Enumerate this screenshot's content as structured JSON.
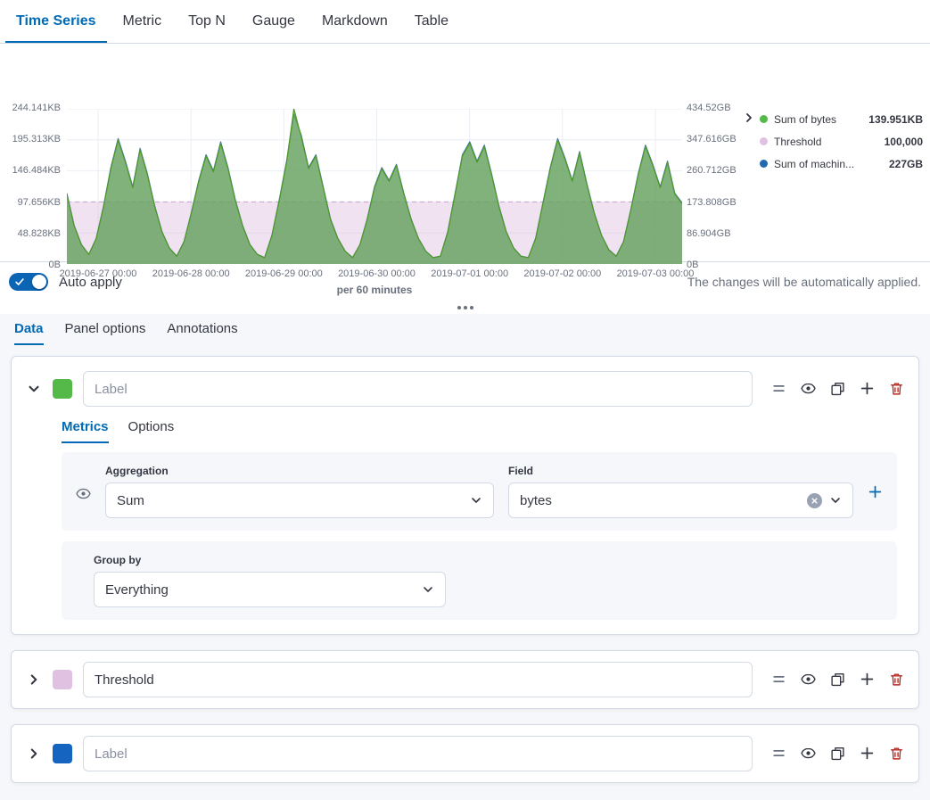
{
  "theme": {
    "primary": "#006BB4",
    "danger": "#BD271E"
  },
  "top_tabs": {
    "items": [
      {
        "label": "Time Series",
        "active": true
      },
      {
        "label": "Metric"
      },
      {
        "label": "Top N"
      },
      {
        "label": "Gauge"
      },
      {
        "label": "Markdown"
      },
      {
        "label": "Table"
      }
    ]
  },
  "chart": {
    "left_ticks": [
      "244.141KB",
      "195.313KB",
      "146.484KB",
      "97.656KB",
      "48.828KB",
      "0B"
    ],
    "right_ticks": [
      "434.52GB",
      "347.616GB",
      "260.712GB",
      "173.808GB",
      "86.904GB",
      "0B"
    ],
    "x_caption": "per 60 minutes",
    "legend": {
      "items": [
        {
          "label": "Sum of bytes",
          "value": "139.951KB",
          "color": "#54B948"
        },
        {
          "label": "Threshold",
          "value": "100,000",
          "color": "#E0C1E2"
        },
        {
          "label": "Sum of machin...",
          "value": "227GB",
          "color": "#2268AE"
        }
      ]
    }
  },
  "chart_data": {
    "type": "area",
    "x_tick_labels": [
      "2019-06-27 00:00",
      "2019-06-28 00:00",
      "2019-06-29 00:00",
      "2019-06-30 00:00",
      "2019-07-01 00:00",
      "2019-07-02 00:00",
      "2019-07-03 00:00"
    ],
    "x_unit": "per 60 minutes",
    "axes": {
      "left": {
        "unit": "KB",
        "max": 244.141,
        "ticks": [
          0,
          48.828,
          97.656,
          146.484,
          195.313,
          244.141
        ]
      },
      "right": {
        "unit": "GB",
        "max": 434.52,
        "ticks": [
          0,
          86.904,
          173.808,
          260.712,
          347.616,
          434.52
        ]
      }
    },
    "series": [
      {
        "name": "Sum of bytes",
        "axis": "left",
        "type": "area",
        "color": "#54B948",
        "fill": "rgba(110,174,58,0.6)",
        "stroke": "#4E9A27",
        "current": "139.951KB",
        "values": [
          110,
          60,
          30,
          15,
          40,
          90,
          150,
          195,
          160,
          120,
          180,
          140,
          90,
          50,
          25,
          12,
          35,
          80,
          130,
          170,
          145,
          190,
          150,
          100,
          60,
          30,
          15,
          10,
          45,
          100,
          160,
          244,
          200,
          150,
          170,
          120,
          70,
          40,
          20,
          10,
          30,
          70,
          120,
          150,
          130,
          155,
          110,
          70,
          40,
          20,
          10,
          12,
          50,
          110,
          170,
          190,
          160,
          185,
          140,
          90,
          50,
          25,
          12,
          10,
          40,
          95,
          150,
          195,
          165,
          130,
          175,
          125,
          80,
          45,
          22,
          12,
          35,
          85,
          140,
          185,
          155,
          120,
          160,
          110,
          95
        ]
      },
      {
        "name": "Threshold",
        "axis": "left",
        "type": "band",
        "color": "#E0C1E2",
        "band_fill": "rgba(219,182,221,0.4)",
        "line": "#C79ECB",
        "value": 97.656,
        "current": "100,000"
      },
      {
        "name": "Sum of machin...",
        "axis": "right",
        "type": "area",
        "color": "#2268AE",
        "fill": "rgba(92,138,197,0.6)",
        "stroke": "#3D6FB2",
        "current": "227GB",
        "values": [
          198,
          108,
          54,
          27,
          72,
          162,
          270,
          351,
          288,
          216,
          324,
          252,
          162,
          90,
          45,
          22,
          63,
          144,
          234,
          306,
          261,
          342,
          270,
          180,
          108,
          54,
          27,
          18,
          81,
          180,
          288,
          420,
          360,
          270,
          306,
          216,
          126,
          72,
          36,
          18,
          54,
          126,
          216,
          270,
          234,
          279,
          198,
          126,
          72,
          36,
          18,
          22,
          90,
          198,
          306,
          342,
          288,
          333,
          252,
          162,
          90,
          45,
          22,
          18,
          72,
          171,
          270,
          351,
          297,
          234,
          315,
          225,
          144,
          81,
          40,
          22,
          63,
          153,
          252,
          333,
          279,
          216,
          288,
          198,
          171
        ]
      }
    ]
  },
  "auto_apply": {
    "label": "Auto apply",
    "hint": "The changes will be automatically applied.",
    "enabled": true
  },
  "editor_tabs": {
    "items": [
      {
        "label": "Data",
        "active": true
      },
      {
        "label": "Panel options"
      },
      {
        "label": "Annotations"
      }
    ]
  },
  "icons": {
    "visibility": "eye",
    "duplicate": "copy",
    "add": "plus",
    "delete": "trash",
    "reorder": "drag-handle",
    "expand": "chevron"
  },
  "series_editor": [
    {
      "color": "#54B948",
      "label_placeholder": "Label",
      "expanded": true,
      "tabs": {
        "metrics": "Metrics",
        "options": "Options"
      },
      "aggregation": {
        "label": "Aggregation",
        "value": "Sum"
      },
      "field": {
        "label": "Field",
        "value": "bytes"
      },
      "group_by": {
        "label": "Group by",
        "value": "Everything"
      }
    },
    {
      "color": "#E0C1E2",
      "label_value": "Threshold"
    },
    {
      "color": "#1564C0",
      "label_placeholder": "Label"
    }
  ]
}
